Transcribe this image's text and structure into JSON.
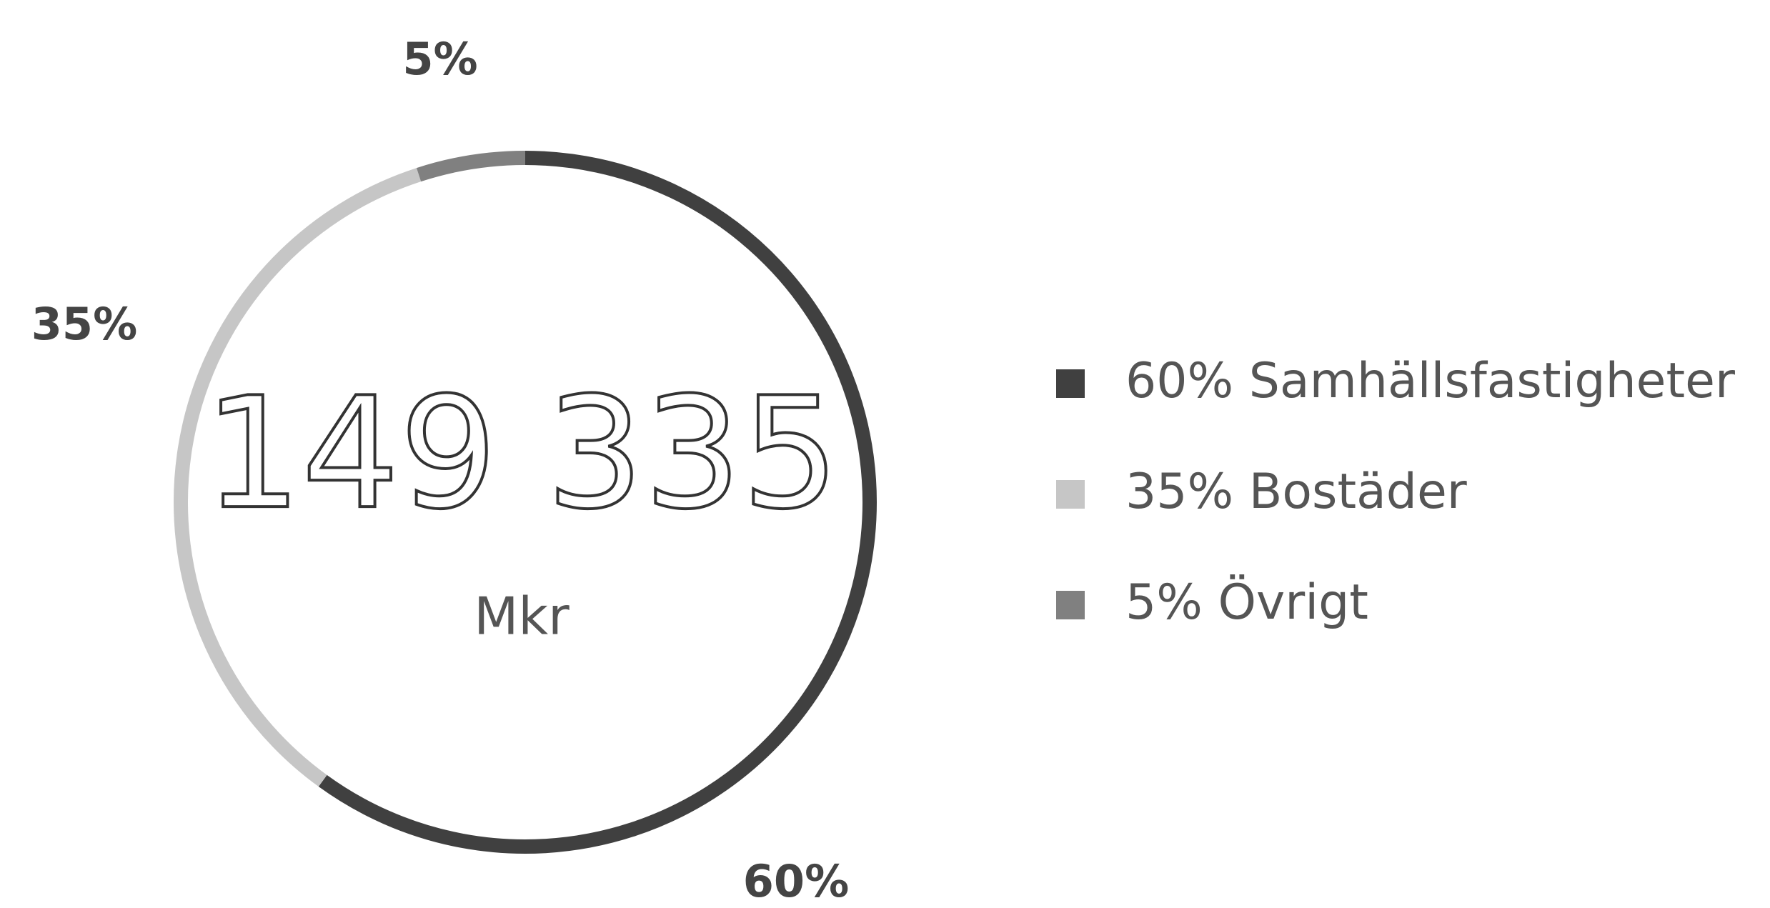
{
  "chart_data": {
    "type": "donut",
    "categories": [
      "Samhällsfastigheter",
      "Bostäder",
      "Övrigt"
    ],
    "values": [
      60,
      35,
      5
    ],
    "value_labels": [
      "60%",
      "35%",
      "5%"
    ],
    "colors": [
      "#404040",
      "#c6c6c6",
      "#808080"
    ],
    "center_text": "149 335",
    "center_subtext": "Mkr",
    "legend": "right"
  }
}
